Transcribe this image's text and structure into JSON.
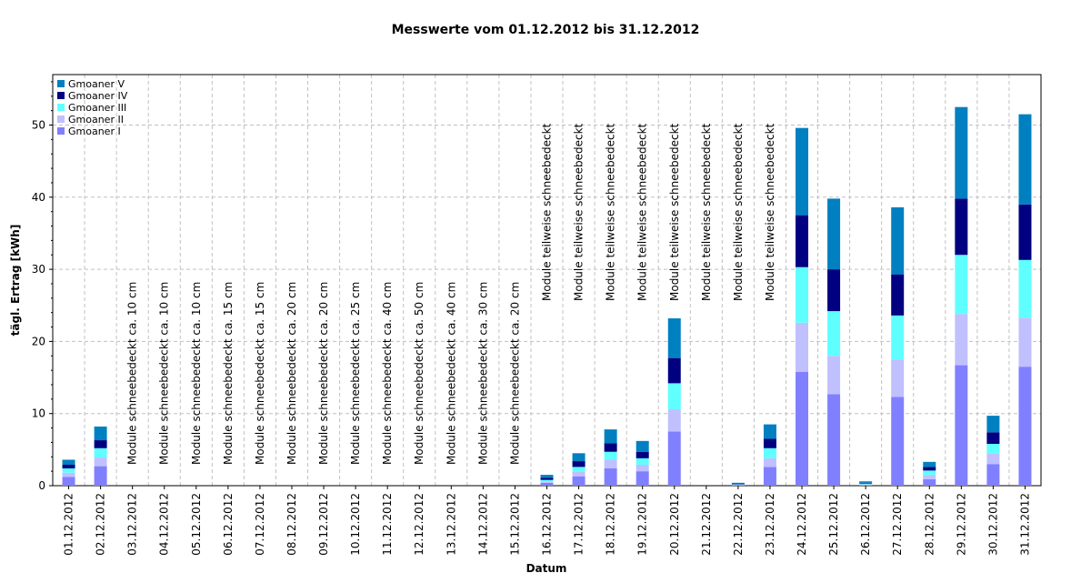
{
  "chart_data": {
    "type": "bar",
    "stacked": true,
    "title": "Messwerte vom 01.12.2012 bis 31.12.2012",
    "xlabel": "Datum",
    "ylabel": "tägl. Ertrag [kWh]",
    "ylim": [
      0,
      57
    ],
    "yticks": [
      0,
      10,
      20,
      30,
      40,
      50
    ],
    "grid": true,
    "legend_position": "top-left",
    "categories": [
      "01.12.2012",
      "02.12.2012",
      "03.12.2012",
      "04.12.2012",
      "05.12.2012",
      "06.12.2012",
      "07.12.2012",
      "08.12.2012",
      "09.12.2012",
      "10.12.2012",
      "11.12.2012",
      "12.12.2012",
      "13.12.2012",
      "14.12.2012",
      "15.12.2012",
      "16.12.2012",
      "17.12.2012",
      "18.12.2012",
      "19.12.2012",
      "20.12.2012",
      "21.12.2012",
      "22.12.2012",
      "23.12.2012",
      "24.12.2012",
      "25.12.2012",
      "26.12.2012",
      "27.12.2012",
      "28.12.2012",
      "29.12.2012",
      "30.12.2012",
      "31.12.2012"
    ],
    "series": [
      {
        "name": "Gmoaner I",
        "color": "#8080ff",
        "values": [
          1.2,
          2.7,
          0,
          0,
          0,
          0,
          0,
          0,
          0,
          0,
          0,
          0,
          0,
          0,
          0,
          0.4,
          1.3,
          2.4,
          2.0,
          7.5,
          0,
          0.1,
          2.6,
          15.8,
          12.7,
          0.1,
          12.3,
          0.9,
          16.7,
          3.0,
          16.5
        ]
      },
      {
        "name": "Gmoaner II",
        "color": "#c0c0ff",
        "values": [
          0.6,
          1.2,
          0,
          0,
          0,
          0,
          0,
          0,
          0,
          0,
          0,
          0,
          0,
          0,
          0,
          0.2,
          0.6,
          1.2,
          0.9,
          3.1,
          0,
          0.05,
          1.2,
          6.8,
          5.3,
          0.1,
          5.2,
          0.6,
          7.1,
          1.5,
          6.8
        ]
      },
      {
        "name": "Gmoaner III",
        "color": "#60ffff",
        "values": [
          0.6,
          1.3,
          0,
          0,
          0,
          0,
          0,
          0,
          0,
          0,
          0,
          0,
          0,
          0,
          0,
          0.2,
          0.7,
          1.1,
          0.9,
          3.6,
          0,
          0.05,
          1.4,
          7.7,
          6.2,
          0.1,
          6.1,
          0.6,
          8.2,
          1.3,
          8.0
        ]
      },
      {
        "name": "Gmoaner IV",
        "color": "#000080",
        "values": [
          0.5,
          1.1,
          0,
          0,
          0,
          0,
          0,
          0,
          0,
          0,
          0,
          0,
          0,
          0,
          0,
          0.3,
          0.8,
          1.2,
          0.9,
          3.5,
          0,
          0.1,
          1.3,
          7.2,
          5.8,
          0.1,
          5.7,
          0.5,
          7.8,
          1.6,
          7.7
        ]
      },
      {
        "name": "Gmoaner V",
        "color": "#0080c0",
        "values": [
          0.7,
          1.9,
          0,
          0,
          0,
          0,
          0,
          0,
          0,
          0,
          0,
          0,
          0,
          0,
          0,
          0.4,
          1.1,
          1.9,
          1.5,
          5.5,
          0,
          0.1,
          2.0,
          12.1,
          9.8,
          0.2,
          9.3,
          0.7,
          12.7,
          2.3,
          12.5
        ]
      }
    ],
    "annotations": [
      {
        "category": "03.12.2012",
        "text": "Module schneebedeckt ca. 10 cm"
      },
      {
        "category": "04.12.2012",
        "text": "Module schneebedeckt ca. 10 cm"
      },
      {
        "category": "05.12.2012",
        "text": "Module schneebedeckt ca. 10 cm"
      },
      {
        "category": "06.12.2012",
        "text": "Module schneebedeckt ca. 15 cm"
      },
      {
        "category": "07.12.2012",
        "text": "Module schneebedeckt ca. 15 cm"
      },
      {
        "category": "08.12.2012",
        "text": "Module schneebedeckt ca. 20 cm"
      },
      {
        "category": "09.12.2012",
        "text": "Module schneebedeckt ca. 20 cm"
      },
      {
        "category": "10.12.2012",
        "text": "Module schneebedeckt ca. 25 cm"
      },
      {
        "category": "11.12.2012",
        "text": "Module schneebedeckt ca. 40 cm"
      },
      {
        "category": "12.12.2012",
        "text": "Module schneebedeckt ca. 50 cm"
      },
      {
        "category": "13.12.2012",
        "text": "Module schneebedeckt ca. 40 cm"
      },
      {
        "category": "14.12.2012",
        "text": "Module schneebedeckt ca. 30 cm"
      },
      {
        "category": "15.12.2012",
        "text": "Module schneebedeckt ca. 20 cm"
      },
      {
        "category": "16.12.2012",
        "text": "Module teilweise schneebedeckt"
      },
      {
        "category": "17.12.2012",
        "text": "Module teilweise schneebedeckt"
      },
      {
        "category": "18.12.2012",
        "text": "Module teilweise schneebedeckt"
      },
      {
        "category": "19.12.2012",
        "text": "Module teilweise schneebedeckt"
      },
      {
        "category": "20.12.2012",
        "text": "Module teilweise schneebedeckt"
      },
      {
        "category": "21.12.2012",
        "text": "Module teilweise schneebedeckt"
      },
      {
        "category": "22.12.2012",
        "text": "Module teilweise schneebedeckt"
      },
      {
        "category": "23.12.2012",
        "text": "Module teilweise schneebedeckt"
      }
    ]
  }
}
